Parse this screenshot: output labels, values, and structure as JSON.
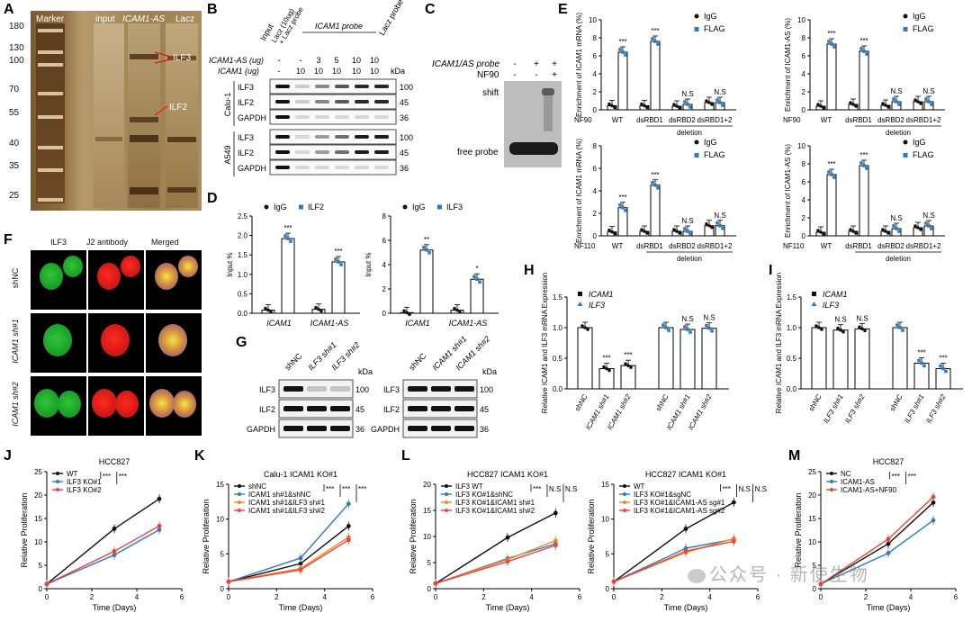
{
  "watermark": "公众号 · 新使生物",
  "panelA": {
    "label": "A",
    "lanes": [
      "Marker",
      "input",
      "ICAM1-AS",
      "Lacz"
    ],
    "marker_kda": [
      "180",
      "130",
      "100",
      "70",
      "55",
      "40",
      "35",
      "25"
    ],
    "band_labels": [
      "ILF3",
      "ILF2"
    ]
  },
  "panelB": {
    "label": "B",
    "col_headers": [
      "Input",
      "Lacz (10ug)\n+ Lacz probe",
      "ICAM1 probe",
      "Lacz probe"
    ],
    "row1_label": "ICAM1-AS (ug)",
    "row2_label": "ICAM1 (ug)",
    "row1_values": [
      "-",
      "-",
      "3",
      "5",
      "10",
      "10"
    ],
    "row2_values": [
      "-",
      "10",
      "10",
      "10",
      "10",
      "10"
    ],
    "kda": "kDa",
    "groups": [
      {
        "name": "Calu-1",
        "rows": [
          {
            "protein": "ILF3",
            "kda": "100"
          },
          {
            "protein": "ILF2",
            "kda": "45"
          },
          {
            "protein": "GAPDH",
            "kda": "36"
          }
        ]
      },
      {
        "name": "A549",
        "rows": [
          {
            "protein": "ILF3",
            "kda": "100"
          },
          {
            "protein": "ILF2",
            "kda": "45"
          },
          {
            "protein": "GAPDH",
            "kda": "36"
          }
        ]
      }
    ]
  },
  "panelC": {
    "label": "C",
    "row1_label": "ICAM1/AS probe",
    "row2_label": "NF90",
    "row1_values": [
      "-",
      "+",
      "+"
    ],
    "row2_values": [
      "-",
      "-",
      "+"
    ],
    "shift_label": "shift",
    "free_label": "free probe"
  },
  "panelD": {
    "label": "D",
    "charts": [
      {
        "legend": [
          "IgG",
          "ILF2"
        ],
        "ylabel": "Input %",
        "ylim": [
          0,
          2.5
        ],
        "yticks": [
          "0.0",
          "0.5",
          "1.0",
          "1.5",
          "2.0",
          "2.5"
        ],
        "categories": [
          "ICAM1",
          "ICAM1-AS"
        ],
        "igg": [
          0.08,
          0.1
        ],
        "target": [
          1.92,
          1.32
        ],
        "sig": [
          "***",
          "***"
        ]
      },
      {
        "legend": [
          "IgG",
          "ILF3"
        ],
        "ylabel": "Input %",
        "ylim": [
          0,
          8
        ],
        "yticks": [
          "0",
          "2",
          "4",
          "6",
          "8"
        ],
        "categories": [
          "ICAM1",
          "ICAM1-AS"
        ],
        "igg": [
          0.05,
          0.25
        ],
        "target": [
          5.2,
          2.8
        ],
        "sig": [
          "**",
          "*"
        ]
      }
    ]
  },
  "panelE": {
    "label": "E",
    "legend": [
      "IgG",
      "FLAG"
    ],
    "categories": [
      "WT",
      "dsRBD1",
      "dsRBD2",
      "dsRBD1+2"
    ],
    "deletion_label": "deletion",
    "charts": [
      {
        "ylabel": "Enrichment of ICAM1 mRNA (%)",
        "protein": "NF90",
        "ylim": [
          0,
          10
        ],
        "yticks": [
          "0",
          "2",
          "4",
          "6",
          "8",
          "10"
        ],
        "igg": [
          0.45,
          0.45,
          0.4,
          0.8
        ],
        "flag": [
          6.4,
          7.6,
          0.6,
          0.8
        ],
        "sig": [
          "***",
          "***",
          "N.S",
          "N.S"
        ]
      },
      {
        "ylabel": "Enrichment of ICAM1-AS (%)",
        "protein": "NF90",
        "ylim": [
          0,
          10
        ],
        "yticks": [
          "0",
          "2",
          "4",
          "6",
          "8",
          "10"
        ],
        "igg": [
          0.4,
          0.6,
          0.5,
          0.9
        ],
        "flag": [
          7.3,
          6.5,
          0.9,
          0.9
        ],
        "sig": [
          "***",
          "***",
          "N.S",
          "N.S"
        ]
      },
      {
        "ylabel": "Enrichment of ICAM1 mRNA (%)",
        "protein": "NF110",
        "ylim": [
          0,
          8
        ],
        "yticks": [
          "0",
          "2",
          "4",
          "6",
          "8"
        ],
        "igg": [
          0.35,
          0.4,
          0.4,
          0.9
        ],
        "flag": [
          2.5,
          4.5,
          0.4,
          0.9
        ],
        "sig": [
          "***",
          "***",
          "N.S",
          "N.S"
        ]
      },
      {
        "ylabel": "Enrichment of ICAM1-AS (%)",
        "protein": "NF110",
        "ylim": [
          0,
          10
        ],
        "yticks": [
          "0",
          "2",
          "4",
          "6",
          "8",
          "10"
        ],
        "igg": [
          0.4,
          0.5,
          0.5,
          0.9
        ],
        "flag": [
          6.8,
          7.8,
          0.8,
          1.1
        ],
        "sig": [
          "***",
          "***",
          "N.S",
          "N.S"
        ]
      }
    ]
  },
  "panelF": {
    "label": "F",
    "col_headers": [
      "ILF3",
      "J2 antibody",
      "Merged"
    ],
    "row_labels": [
      "shNC",
      "ICAM1 sh#1",
      "ICAM1 sh#2"
    ]
  },
  "panelG": {
    "label": "G",
    "blots": [
      {
        "lanes": [
          "shNC",
          "ILF3 sh#1",
          "ILF3 sh#2"
        ],
        "rows": [
          {
            "protein": "ILF3",
            "kda": "100"
          },
          {
            "protein": "ILF2",
            "kda": "45"
          },
          {
            "protein": "GAPDH",
            "kda": "36"
          }
        ]
      },
      {
        "lanes": [
          "shNC",
          "ICAM1 sh#1",
          "ICAM1 sh#2"
        ],
        "rows": [
          {
            "protein": "ILF3",
            "kda": "100"
          },
          {
            "protein": "ILF2",
            "kda": "45"
          },
          {
            "protein": "GAPDH",
            "kda": "36"
          }
        ]
      }
    ],
    "kda": "kDa"
  },
  "panelH": {
    "label": "H",
    "legend": [
      "ICAM1",
      "ILF3"
    ],
    "ylabel": "Relative ICAM1 and ILF3 mRNA Expression",
    "yticks": [
      "0.0",
      "0.5",
      "1.0",
      "1.5"
    ],
    "ylim": [
      0,
      1.5
    ],
    "categories": [
      "shNC",
      "ICAM1 sh#1",
      "ICAM1 sh#2",
      "shNC",
      "ICAM1 sh#1",
      "ICAM1 sh#2"
    ],
    "values": [
      1.0,
      0.33,
      0.38,
      1.0,
      0.97,
      0.99
    ],
    "sig": [
      "",
      "***",
      "***",
      "",
      "N.S",
      "N.S"
    ]
  },
  "panelI": {
    "label": "I",
    "legend": [
      "ICAM1",
      "ILF3"
    ],
    "ylabel": "Relative ICAM1 and ILF3 mRNA Expression",
    "yticks": [
      "0.0",
      "0.5",
      "1.0",
      "1.5"
    ],
    "ylim": [
      0,
      1.5
    ],
    "categories": [
      "shNC",
      "ILF3 sh#1",
      "ILF3 sh#2",
      "shNC",
      "ILF3 sh#1",
      "ILF3 sh#2"
    ],
    "values": [
      1.0,
      0.96,
      0.98,
      1.0,
      0.42,
      0.33
    ],
    "sig": [
      "",
      "N.S",
      "N.S",
      "",
      "***",
      "***"
    ]
  },
  "chart_data": [
    {
      "type": "line",
      "title": "HCC827",
      "xlabel": "Time (Days)",
      "ylabel": "Relative Proliferation",
      "x": [
        0,
        3,
        5
      ],
      "xlim": [
        0,
        6
      ],
      "ylim": [
        0,
        25
      ],
      "yticks": [
        0,
        5,
        10,
        15,
        20,
        25
      ],
      "series": [
        {
          "name": "WT",
          "color": "#111111",
          "values": [
            1,
            12.8,
            19.2
          ]
        },
        {
          "name": "ILF3 KO#1",
          "color": "#2f7bbf",
          "values": [
            1,
            7.2,
            12.6
          ]
        },
        {
          "name": "ILF3 KO#2",
          "color": "#e8443a",
          "values": [
            1,
            8.0,
            13.4
          ]
        }
      ],
      "sig": [
        "***",
        "***"
      ],
      "panel": "J"
    },
    {
      "type": "line",
      "title": "Calu-1 ICAM1 KO#1",
      "xlabel": "Time (Days)",
      "ylabel": "Relative Proliferation",
      "x": [
        0,
        3,
        5
      ],
      "xlim": [
        0,
        6
      ],
      "ylim": [
        0,
        15
      ],
      "yticks": [
        0,
        5,
        10,
        15
      ],
      "series": [
        {
          "name": "shNC",
          "color": "#111111",
          "values": [
            1,
            3.6,
            9.0
          ]
        },
        {
          "name": "ICAM1 sh#1&shNC",
          "color": "#2f7bbf",
          "values": [
            1,
            4.4,
            12.2
          ]
        },
        {
          "name": "ICAM1 sh#1&ILF3 sh#1",
          "color": "#f4862a",
          "values": [
            1,
            2.9,
            7.4
          ]
        },
        {
          "name": "ICAM1 sh#1&ILF3 sh#2",
          "color": "#e8443a",
          "values": [
            1,
            2.7,
            7.0
          ]
        }
      ],
      "sig": [
        "***",
        "***",
        "***"
      ],
      "panel": "K"
    },
    {
      "type": "line",
      "title": "HCC827 ICAM1 KO#1",
      "xlabel": "Time (Days)",
      "ylabel": "Relative Proliferation",
      "x": [
        0,
        3,
        5
      ],
      "xlim": [
        0,
        6
      ],
      "ylim": [
        0,
        20
      ],
      "yticks": [
        0,
        5,
        10,
        15,
        20
      ],
      "series": [
        {
          "name": "ILF3 WT",
          "color": "#111111",
          "values": [
            1,
            9.8,
            14.5
          ]
        },
        {
          "name": "ILF3 KO#1&shNC",
          "color": "#2f7bbf",
          "values": [
            1,
            5.8,
            8.6
          ]
        },
        {
          "name": "ILF3 KO#1&ICAM1 sh#1",
          "color": "#f4862a",
          "values": [
            1,
            5.6,
            9.2
          ]
        },
        {
          "name": "ILF3 KO#1&ICAM1 sh#2",
          "color": "#e8443a",
          "values": [
            1,
            5.2,
            8.3
          ]
        }
      ],
      "sig": [
        "***",
        "N.S",
        "N.S"
      ],
      "panel": "L"
    },
    {
      "type": "line",
      "title": "HCC827 ICAM1 KO#1",
      "xlabel": "Time (Days)",
      "ylabel": "Relative Proliferation",
      "x": [
        0,
        3,
        5
      ],
      "xlim": [
        0,
        6
      ],
      "ylim": [
        0,
        15
      ],
      "yticks": [
        0,
        5,
        10,
        15
      ],
      "series": [
        {
          "name": "WT",
          "color": "#111111",
          "values": [
            1,
            8.6,
            12.4
          ]
        },
        {
          "name": "ILF3 KO#1&sgNC",
          "color": "#2f7bbf",
          "values": [
            1,
            5.8,
            7.1
          ]
        },
        {
          "name": "ILF3 KO#1&ICAM1-AS sg#1",
          "color": "#f4862a",
          "values": [
            1,
            5.2,
            7.2
          ]
        },
        {
          "name": "ILF3 KO#1&ICAM1-AS sg#2",
          "color": "#e8443a",
          "values": [
            1,
            5.4,
            6.8
          ]
        }
      ],
      "sig": [
        "***",
        "N.S",
        "N.S"
      ],
      "panel": "L2"
    },
    {
      "type": "line",
      "title": "HCC827",
      "xlabel": "Time (Days)",
      "ylabel": "Relative Proliferation",
      "x": [
        0,
        3,
        5
      ],
      "xlim": [
        0,
        6
      ],
      "ylim": [
        0,
        25
      ],
      "yticks": [
        0,
        5,
        10,
        15,
        20,
        25
      ],
      "series": [
        {
          "name": "NC",
          "color": "#111111",
          "values": [
            1,
            9.6,
            18.4
          ]
        },
        {
          "name": "ICAM1-AS",
          "color": "#2f7bbf",
          "values": [
            1,
            7.6,
            14.6
          ]
        },
        {
          "name": "ICAM1-AS+NF90",
          "color": "#e8443a",
          "values": [
            1,
            10.6,
            19.6
          ]
        }
      ],
      "sig": [
        "***",
        "***"
      ],
      "panel": "M"
    }
  ],
  "panelJ": {
    "label": "J"
  },
  "panelK": {
    "label": "K"
  },
  "panelL": {
    "label": "L"
  },
  "panelM": {
    "label": "M"
  }
}
